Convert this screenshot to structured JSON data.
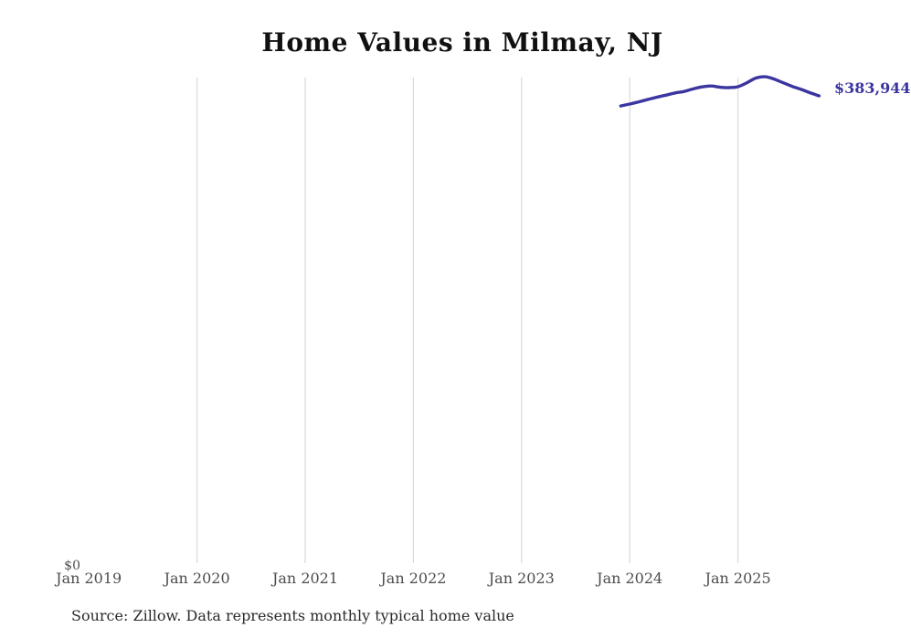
{
  "source_note": "Source: Zillow. Data represents monthly typical home value",
  "colors": {
    "line": "#3b35a0",
    "end_label": "#3b35a0",
    "grid": "#d9d9d9",
    "axis_label": "#4d4d4d",
    "title": "#111111",
    "source": "#2b2b2b",
    "background": "#ffffff"
  },
  "chart_data": {
    "type": "line",
    "title": "Home Values in Milmay, NJ",
    "xlabel": "",
    "ylabel": "",
    "x_tick_labels": [
      "Jan 2019",
      "Jan 2020",
      "Jan 2021",
      "Jan 2022",
      "Jan 2023",
      "Jan 2024",
      "Jan 2025"
    ],
    "x_tick_years": [
      2019,
      2020,
      2021,
      2022,
      2023,
      2024,
      2025
    ],
    "gridline_years": [
      2020,
      2021,
      2022,
      2023,
      2024,
      2025
    ],
    "grid": "vertical-only",
    "legend": "none",
    "ylim": [
      0,
      400000
    ],
    "y_zero_label": "$0",
    "end_label": "$383,944",
    "series": [
      {
        "name": "Monthly typical home value",
        "points": [
          {
            "month": "2023-12",
            "value": 375600
          },
          {
            "month": "2024-01",
            "value": 377200
          },
          {
            "month": "2024-02",
            "value": 379000
          },
          {
            "month": "2024-03",
            "value": 380900
          },
          {
            "month": "2024-04",
            "value": 382800
          },
          {
            "month": "2024-05",
            "value": 384500
          },
          {
            "month": "2024-06",
            "value": 386300
          },
          {
            "month": "2024-07",
            "value": 387500
          },
          {
            "month": "2024-08",
            "value": 389600
          },
          {
            "month": "2024-09",
            "value": 391300
          },
          {
            "month": "2024-10",
            "value": 392100
          },
          {
            "month": "2024-11",
            "value": 391100
          },
          {
            "month": "2024-12",
            "value": 390700
          },
          {
            "month": "2025-01",
            "value": 391500
          },
          {
            "month": "2025-02",
            "value": 394800
          },
          {
            "month": "2025-03",
            "value": 398600
          },
          {
            "month": "2025-04",
            "value": 399700
          },
          {
            "month": "2025-05",
            "value": 397800
          },
          {
            "month": "2025-06",
            "value": 394800
          },
          {
            "month": "2025-07",
            "value": 391800
          },
          {
            "month": "2025-08",
            "value": 389300
          },
          {
            "month": "2025-09",
            "value": 386500
          },
          {
            "month": "2025-10",
            "value": 383944
          }
        ]
      }
    ]
  }
}
